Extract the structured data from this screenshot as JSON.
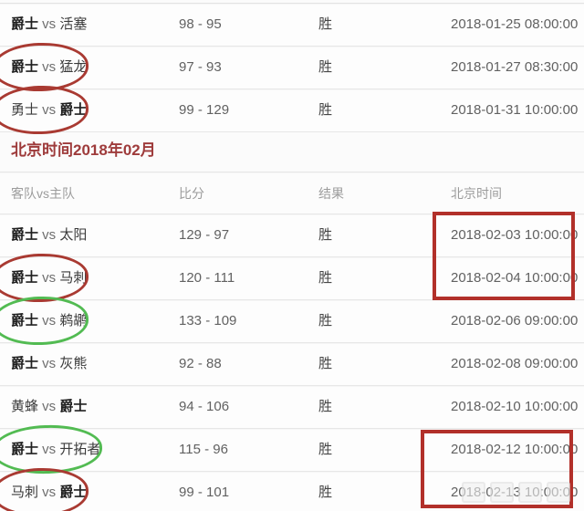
{
  "colors": {
    "circle_red": "#a93a32",
    "circle_green": "#52bb52",
    "highlight_box_red": "#b2302a",
    "section_title_red": "#9e3b3b",
    "header_text_gray": "#9c9c9c"
  },
  "table": {
    "vs_label": "vs",
    "header": {
      "teams": "客队vs主队",
      "score": "比分",
      "result": "结果",
      "time": "北京时间"
    }
  },
  "sections": [
    {
      "name": "january",
      "rows": [
        {
          "away": "爵士",
          "home": "活塞",
          "bold": "away",
          "score": "98 - 95",
          "result": "胜",
          "time": "2018-01-25 08:00:00",
          "circle": null
        },
        {
          "away": "爵士",
          "home": "猛龙",
          "bold": "away",
          "score": "97 - 93",
          "result": "胜",
          "time": "2018-01-27 08:30:00",
          "circle": "red"
        },
        {
          "away": "勇士",
          "home": "爵士",
          "bold": "home",
          "score": "99 - 129",
          "result": "胜",
          "time": "2018-01-31 10:00:00",
          "circle": "red"
        }
      ]
    },
    {
      "name": "february",
      "title": "北京时间2018年02月",
      "rows": [
        {
          "away": "爵士",
          "home": "太阳",
          "bold": "away",
          "score": "129 - 97",
          "result": "胜",
          "time": "2018-02-03 10:00:00",
          "circle": null
        },
        {
          "away": "爵士",
          "home": "马刺",
          "bold": "away",
          "score": "120 - 111",
          "result": "胜",
          "time": "2018-02-04 10:00:00",
          "circle": "red"
        },
        {
          "away": "爵士",
          "home": "鹈鹕",
          "bold": "away",
          "score": "133 - 109",
          "result": "胜",
          "time": "2018-02-06 09:00:00",
          "circle": "green"
        },
        {
          "away": "爵士",
          "home": "灰熊",
          "bold": "away",
          "score": "92 - 88",
          "result": "胜",
          "time": "2018-02-08 09:00:00",
          "circle": null
        },
        {
          "away": "黄蜂",
          "home": "爵士",
          "bold": "home",
          "score": "94 - 106",
          "result": "胜",
          "time": "2018-02-10 10:00:00",
          "circle": null
        },
        {
          "away": "爵士",
          "home": "开拓者",
          "bold": "away",
          "score": "115 - 96",
          "result": "胜",
          "time": "2018-02-12 10:00:00",
          "circle": "green"
        },
        {
          "away": "马刺",
          "home": "爵士",
          "bold": "home",
          "score": "99 - 101",
          "result": "胜",
          "time": "2018-02-13 10:00:00",
          "circle": "red"
        }
      ]
    }
  ]
}
